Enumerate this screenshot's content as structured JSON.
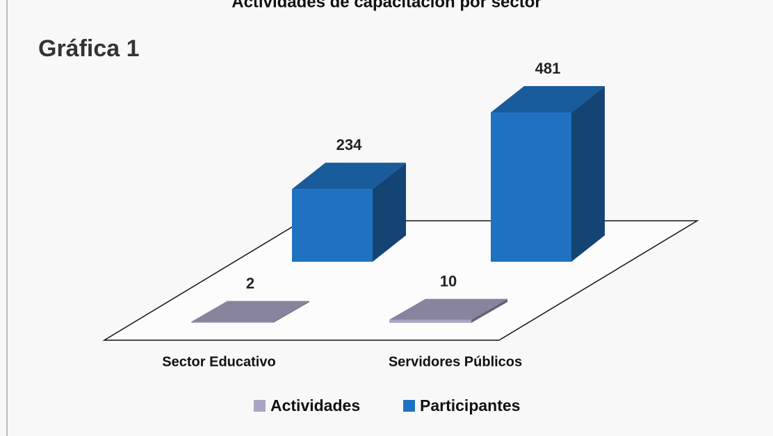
{
  "heading": "Gráfica 1",
  "chart_data": {
    "type": "bar3d",
    "title": "Actividades de capacitación por sector",
    "categories": [
      "Sector Educativo",
      "Servidores Públicos"
    ],
    "series": [
      {
        "name": "Actividades",
        "color": "#aaa5c4",
        "values": [
          2,
          10
        ]
      },
      {
        "name": "Participantes",
        "color": "#1f72c2",
        "values": [
          234,
          481
        ]
      }
    ]
  }
}
